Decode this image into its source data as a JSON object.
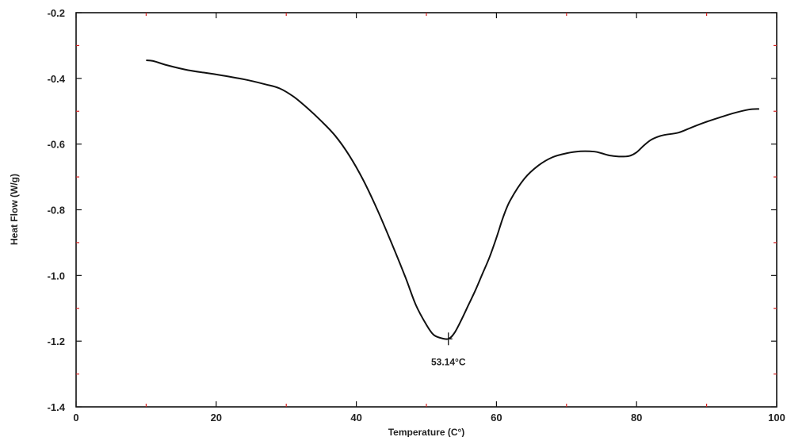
{
  "chart_data": {
    "type": "line",
    "title": "",
    "xlabel": "Temperature (C°)",
    "ylabel": "Heat Flow (W/g)",
    "xlim": [
      0,
      100
    ],
    "ylim": [
      -1.4,
      -0.2
    ],
    "xticks": [
      0,
      20,
      40,
      60,
      80,
      100
    ],
    "xtick_labels": [
      "0",
      "20",
      "40",
      "60",
      "80",
      "100"
    ],
    "yticks": [
      -1.4,
      -1.2,
      -1.0,
      -0.8,
      -0.6,
      -0.4,
      -0.2
    ],
    "ytick_labels": [
      "-1.4",
      "-1.2",
      "-1.0",
      "-0.8",
      "-0.6",
      "-0.4",
      "-0.2"
    ],
    "grid": false,
    "legend": "none",
    "line_color": "#111111",
    "minor_tick_color": "#d62020",
    "series": [
      {
        "x": [
          10,
          11,
          13,
          16,
          20,
          24,
          27,
          29,
          31,
          33,
          35,
          37,
          39,
          41,
          43,
          45,
          47,
          48.5,
          50,
          51,
          52,
          53.14,
          54,
          55,
          56,
          57,
          58,
          59,
          60,
          61,
          62,
          64,
          66,
          68,
          70,
          72,
          74,
          75,
          76,
          77,
          78,
          79,
          80,
          81,
          82,
          83,
          84,
          86,
          88,
          90,
          92,
          94,
          96,
          97.5
        ],
        "y": [
          -0.345,
          -0.347,
          -0.36,
          -0.375,
          -0.388,
          -0.403,
          -0.418,
          -0.43,
          -0.455,
          -0.49,
          -0.53,
          -0.575,
          -0.635,
          -0.71,
          -0.8,
          -0.9,
          -1.005,
          -1.09,
          -1.15,
          -1.18,
          -1.19,
          -1.193,
          -1.175,
          -1.135,
          -1.09,
          -1.045,
          -0.995,
          -0.945,
          -0.885,
          -0.82,
          -0.77,
          -0.705,
          -0.665,
          -0.64,
          -0.628,
          -0.622,
          -0.623,
          -0.628,
          -0.634,
          -0.637,
          -0.638,
          -0.636,
          -0.625,
          -0.605,
          -0.588,
          -0.578,
          -0.572,
          -0.565,
          -0.548,
          -0.532,
          -0.518,
          -0.505,
          -0.495,
          -0.493
        ]
      }
    ],
    "annotations": [
      {
        "text": "53.14°C",
        "x": 53.14,
        "y": -1.193
      }
    ]
  }
}
